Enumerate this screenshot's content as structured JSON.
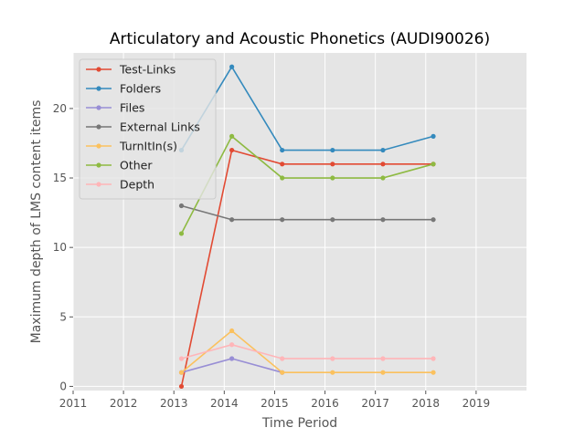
{
  "chart_data": {
    "type": "line",
    "title": "Articulatory and Acoustic Phonetics (AUDI90026)",
    "xlabel": "Time Period",
    "ylabel": "Maximum depth of LMS content items",
    "xlim": [
      2011,
      2020
    ],
    "ylim": [
      -0.3,
      24
    ],
    "xticks": [
      "2011",
      "2012",
      "2013",
      "2014",
      "2015",
      "2016",
      "2017",
      "2018",
      "2019"
    ],
    "yticks": [
      "0",
      "5",
      "10",
      "15",
      "20"
    ],
    "grid": true,
    "legend_position": "top-left",
    "x": [
      2013.15,
      2014.15,
      2015.15,
      2016.15,
      2017.15,
      2018.15
    ],
    "series": [
      {
        "name": "Test-Links",
        "color": "#E24A33",
        "values": [
          0,
          17,
          16,
          16,
          16,
          16
        ]
      },
      {
        "name": "Folders",
        "color": "#348ABD",
        "values": [
          17,
          23,
          17,
          17,
          17,
          18
        ]
      },
      {
        "name": "Files",
        "color": "#988ED5",
        "values": [
          1,
          2,
          1,
          null,
          null,
          null
        ]
      },
      {
        "name": "External Links",
        "color": "#777777",
        "values": [
          13,
          12,
          12,
          12,
          12,
          12
        ]
      },
      {
        "name": "TurnItIn(s)",
        "color": "#FBC15E",
        "values": [
          1,
          4,
          1,
          1,
          1,
          1
        ]
      },
      {
        "name": "Other",
        "color": "#8EBA42",
        "values": [
          11,
          18,
          15,
          15,
          15,
          16
        ]
      },
      {
        "name": "Depth",
        "color": "#FFB5B8",
        "values": [
          2,
          3,
          2,
          2,
          2,
          2
        ]
      }
    ]
  }
}
